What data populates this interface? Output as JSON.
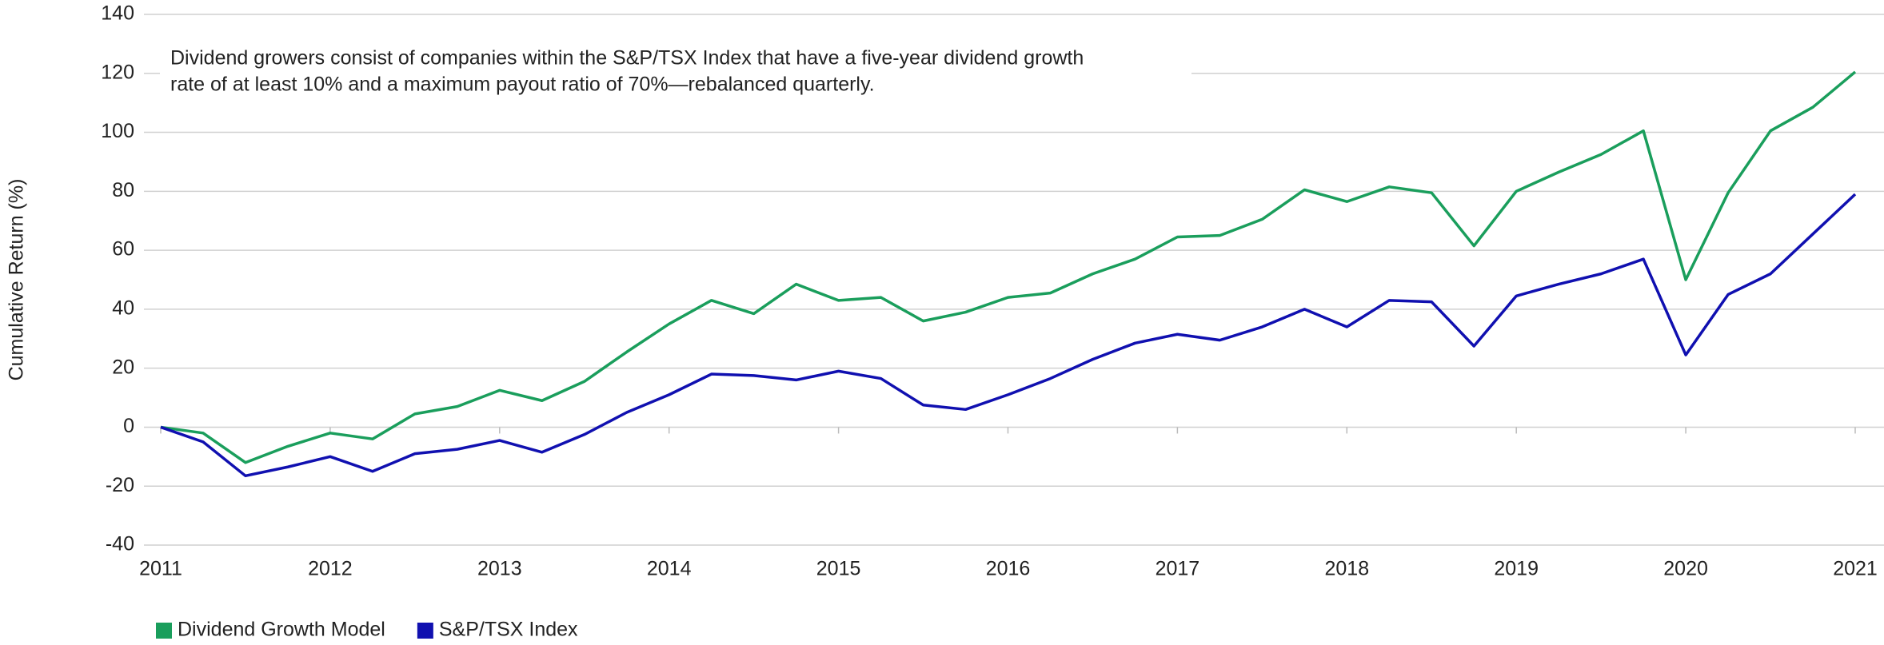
{
  "chart_data": {
    "type": "line",
    "y_label": "Cumulative Return (%)",
    "annotation": [
      "Dividend growers consist of companies within the S&P/TSX Index that have a five-year dividend growth",
      "rate of at least 10% and a maximum payout ratio of 70%—rebalanced quarterly."
    ],
    "x": [
      2011,
      2011.25,
      2011.5,
      2011.75,
      2012,
      2012.25,
      2012.5,
      2012.75,
      2013,
      2013.25,
      2013.5,
      2013.75,
      2014,
      2014.25,
      2014.5,
      2014.75,
      2015,
      2015.25,
      2015.5,
      2015.75,
      2016,
      2016.25,
      2016.5,
      2016.75,
      2017,
      2017.25,
      2017.5,
      2017.75,
      2018,
      2018.25,
      2018.5,
      2018.75,
      2019,
      2019.25,
      2019.5,
      2019.75,
      2020,
      2020.25,
      2020.5,
      2020.75,
      2021
    ],
    "series": [
      {
        "name": "Dividend Growth Model",
        "color": "#1a9e5c",
        "values": [
          0,
          -2,
          -12,
          -6.5,
          -2,
          -4,
          4.5,
          7,
          12.5,
          9,
          15.5,
          25.5,
          35,
          43,
          38.5,
          48.5,
          43,
          44,
          36,
          39,
          44,
          45.5,
          52,
          57,
          64.5,
          65,
          70.5,
          80.5,
          76.5,
          81.5,
          79.5,
          61.5,
          80,
          86.5,
          92.5,
          100.5,
          50,
          79.5,
          100.5,
          108.5,
          120.5
        ]
      },
      {
        "name": "S&P/TSX Index",
        "color": "#1010b0",
        "values": [
          0,
          -5,
          -16.5,
          -13.5,
          -10,
          -15,
          -9,
          -7.5,
          -4.5,
          -8.5,
          -2.5,
          5,
          11,
          18,
          17.5,
          16,
          19,
          16.5,
          7.5,
          6,
          11,
          16.5,
          23,
          28.5,
          31.5,
          29.5,
          34,
          40,
          34,
          43,
          42.5,
          27.5,
          44.5,
          48.5,
          52,
          57,
          24.5,
          45,
          52,
          65.5,
          79
        ]
      }
    ],
    "xlim": [
      2011,
      2021
    ],
    "xticks": [
      2011,
      2012,
      2013,
      2014,
      2015,
      2016,
      2017,
      2018,
      2019,
      2020,
      2021
    ],
    "ylim": [
      -40,
      140
    ],
    "yticks": [
      -40,
      -20,
      0,
      20,
      40,
      60,
      80,
      100,
      120,
      140
    ],
    "grid": true,
    "legend": "bottom-left"
  }
}
